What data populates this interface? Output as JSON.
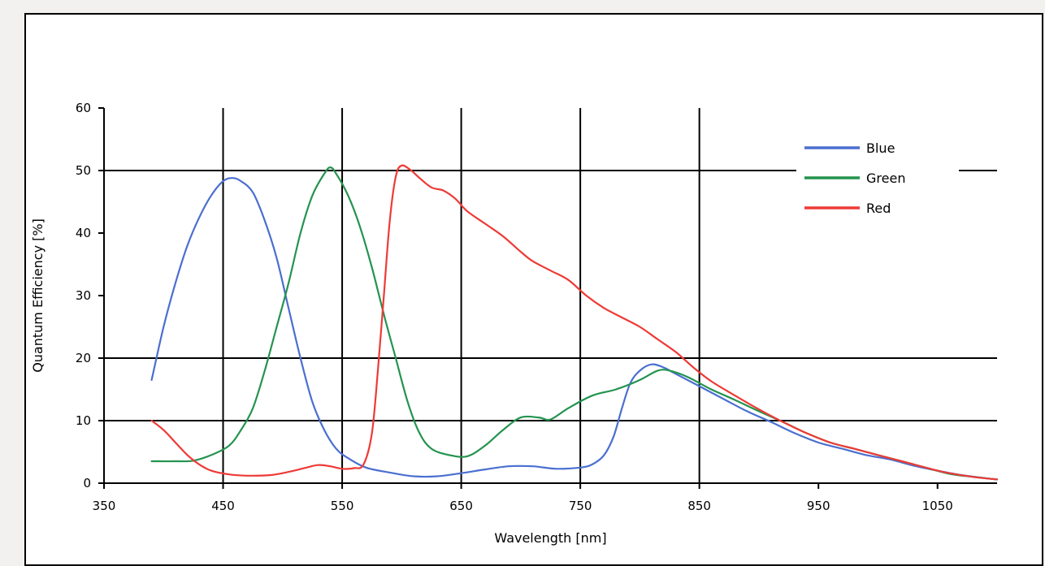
{
  "chart_data": {
    "type": "line",
    "xlabel": "Wavelength [nm]",
    "ylabel": "Quantum Efficiency [%]",
    "xlim": [
      350,
      1100
    ],
    "ylim": [
      0,
      60
    ],
    "xticks": [
      350,
      450,
      550,
      650,
      750,
      850,
      950,
      1050
    ],
    "yticks": [
      0,
      10,
      20,
      30,
      40,
      50,
      60
    ],
    "xtick_labels": [
      "350",
      "450",
      "550",
      "650",
      "750",
      "850",
      "950",
      "1050"
    ],
    "ytick_labels": [
      "0",
      "10",
      "20",
      "30",
      "40",
      "50",
      "60"
    ],
    "vertical_gridlines_at": [
      450,
      550,
      650,
      750,
      850
    ],
    "horizontal_gridlines_at": [
      10,
      20,
      50
    ],
    "legend_position": "top-right",
    "series": [
      {
        "name": "Blue",
        "color": "#4a6fd0",
        "points": [
          [
            390,
            16.5
          ],
          [
            400,
            25
          ],
          [
            410,
            32
          ],
          [
            420,
            38
          ],
          [
            430,
            42.5
          ],
          [
            440,
            46
          ],
          [
            450,
            48.3
          ],
          [
            458,
            48.8
          ],
          [
            465,
            48.3
          ],
          [
            475,
            46.5
          ],
          [
            485,
            42
          ],
          [
            495,
            36
          ],
          [
            505,
            28
          ],
          [
            515,
            20
          ],
          [
            525,
            13
          ],
          [
            535,
            8.5
          ],
          [
            545,
            5.5
          ],
          [
            555,
            4
          ],
          [
            570,
            2.5
          ],
          [
            590,
            1.7
          ],
          [
            610,
            1.1
          ],
          [
            630,
            1.1
          ],
          [
            650,
            1.6
          ],
          [
            670,
            2.2
          ],
          [
            690,
            2.7
          ],
          [
            710,
            2.7
          ],
          [
            730,
            2.3
          ],
          [
            750,
            2.5
          ],
          [
            760,
            3
          ],
          [
            770,
            4.5
          ],
          [
            778,
            7.5
          ],
          [
            785,
            12
          ],
          [
            792,
            16
          ],
          [
            800,
            18
          ],
          [
            810,
            19
          ],
          [
            820,
            18.5
          ],
          [
            830,
            17.5
          ],
          [
            850,
            15.5
          ],
          [
            870,
            13.5
          ],
          [
            890,
            11.5
          ],
          [
            910,
            9.8
          ],
          [
            930,
            8
          ],
          [
            950,
            6.5
          ],
          [
            970,
            5.5
          ],
          [
            990,
            4.5
          ],
          [
            1010,
            3.8
          ],
          [
            1030,
            2.8
          ],
          [
            1050,
            2.0
          ],
          [
            1070,
            1.3
          ],
          [
            1090,
            0.8
          ],
          [
            1100,
            0.6
          ]
        ]
      },
      {
        "name": "Green",
        "color": "#24934f",
        "points": [
          [
            390,
            3.5
          ],
          [
            410,
            3.5
          ],
          [
            425,
            3.6
          ],
          [
            440,
            4.5
          ],
          [
            455,
            6
          ],
          [
            465,
            8.5
          ],
          [
            475,
            12
          ],
          [
            485,
            18
          ],
          [
            495,
            25
          ],
          [
            505,
            32
          ],
          [
            515,
            40
          ],
          [
            525,
            46
          ],
          [
            535,
            49.5
          ],
          [
            540,
            50.5
          ],
          [
            545,
            49.5
          ],
          [
            555,
            46
          ],
          [
            565,
            41
          ],
          [
            575,
            34.5
          ],
          [
            585,
            27
          ],
          [
            595,
            20
          ],
          [
            605,
            13
          ],
          [
            615,
            8
          ],
          [
            625,
            5.5
          ],
          [
            640,
            4.5
          ],
          [
            655,
            4.3
          ],
          [
            670,
            6
          ],
          [
            685,
            8.5
          ],
          [
            700,
            10.5
          ],
          [
            715,
            10.5
          ],
          [
            725,
            10.2
          ],
          [
            740,
            12
          ],
          [
            760,
            14
          ],
          [
            780,
            15
          ],
          [
            800,
            16.5
          ],
          [
            815,
            18
          ],
          [
            825,
            18
          ],
          [
            840,
            17
          ],
          [
            860,
            15
          ],
          [
            880,
            13.3
          ],
          [
            900,
            11.5
          ],
          [
            920,
            9.8
          ],
          [
            940,
            8
          ],
          [
            960,
            6.5
          ],
          [
            980,
            5.5
          ],
          [
            1000,
            4.5
          ],
          [
            1020,
            3.5
          ],
          [
            1040,
            2.5
          ],
          [
            1060,
            1.5
          ],
          [
            1080,
            1
          ],
          [
            1100,
            0.6
          ]
        ]
      },
      {
        "name": "Red",
        "color": "#ee3a36",
        "points": [
          [
            390,
            10
          ],
          [
            400,
            8.5
          ],
          [
            410,
            6.5
          ],
          [
            420,
            4.5
          ],
          [
            430,
            3
          ],
          [
            440,
            2
          ],
          [
            455,
            1.4
          ],
          [
            470,
            1.2
          ],
          [
            490,
            1.3
          ],
          [
            505,
            1.8
          ],
          [
            520,
            2.5
          ],
          [
            530,
            2.9
          ],
          [
            540,
            2.7
          ],
          [
            550,
            2.3
          ],
          [
            560,
            2.4
          ],
          [
            568,
            3
          ],
          [
            575,
            8
          ],
          [
            580,
            18
          ],
          [
            585,
            30
          ],
          [
            590,
            42
          ],
          [
            595,
            49
          ],
          [
            600,
            50.8
          ],
          [
            608,
            50
          ],
          [
            615,
            48.8
          ],
          [
            625,
            47.3
          ],
          [
            635,
            46.8
          ],
          [
            645,
            45.5
          ],
          [
            655,
            43.5
          ],
          [
            670,
            41.5
          ],
          [
            685,
            39.5
          ],
          [
            700,
            37
          ],
          [
            710,
            35.5
          ],
          [
            725,
            34
          ],
          [
            740,
            32.5
          ],
          [
            755,
            30
          ],
          [
            770,
            28
          ],
          [
            785,
            26.5
          ],
          [
            800,
            25
          ],
          [
            815,
            23
          ],
          [
            830,
            21
          ],
          [
            845,
            18.5
          ],
          [
            860,
            16.3
          ],
          [
            880,
            14
          ],
          [
            900,
            11.8
          ],
          [
            920,
            9.8
          ],
          [
            940,
            8
          ],
          [
            960,
            6.5
          ],
          [
            980,
            5.5
          ],
          [
            1000,
            4.5
          ],
          [
            1020,
            3.5
          ],
          [
            1040,
            2.5
          ],
          [
            1060,
            1.6
          ],
          [
            1080,
            1
          ],
          [
            1100,
            0.6
          ]
        ]
      }
    ]
  }
}
